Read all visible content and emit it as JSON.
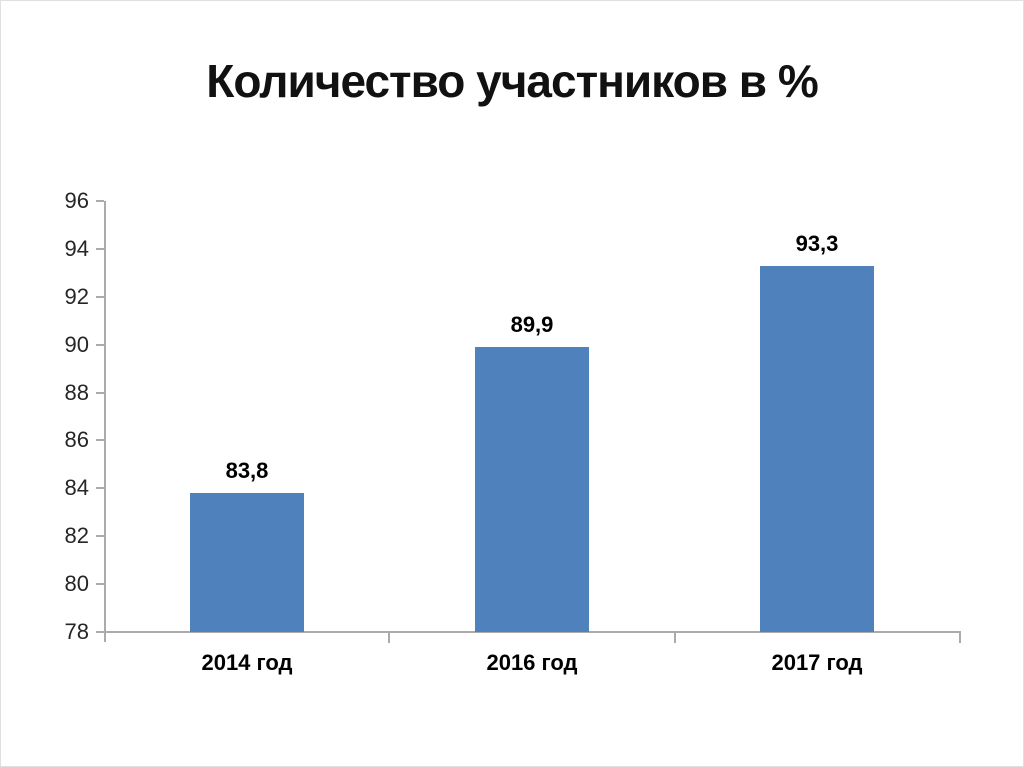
{
  "chart_data": {
    "type": "bar",
    "title": "Количество участников в %",
    "categories": [
      "2014 год",
      "2016 год",
      "2017 год"
    ],
    "values": [
      83.8,
      89.9,
      93.3
    ],
    "value_labels": [
      "83,8",
      "89,9",
      "93,3"
    ],
    "ylim": [
      78,
      96
    ],
    "yticks": [
      78,
      80,
      82,
      84,
      86,
      88,
      90,
      92,
      94,
      96
    ],
    "grid": "off",
    "legend": "none",
    "bar_color": "#4F81BD",
    "axis_color": "#ABABAB",
    "tick_label_color": "#262626",
    "value_label_color": "#000000"
  }
}
